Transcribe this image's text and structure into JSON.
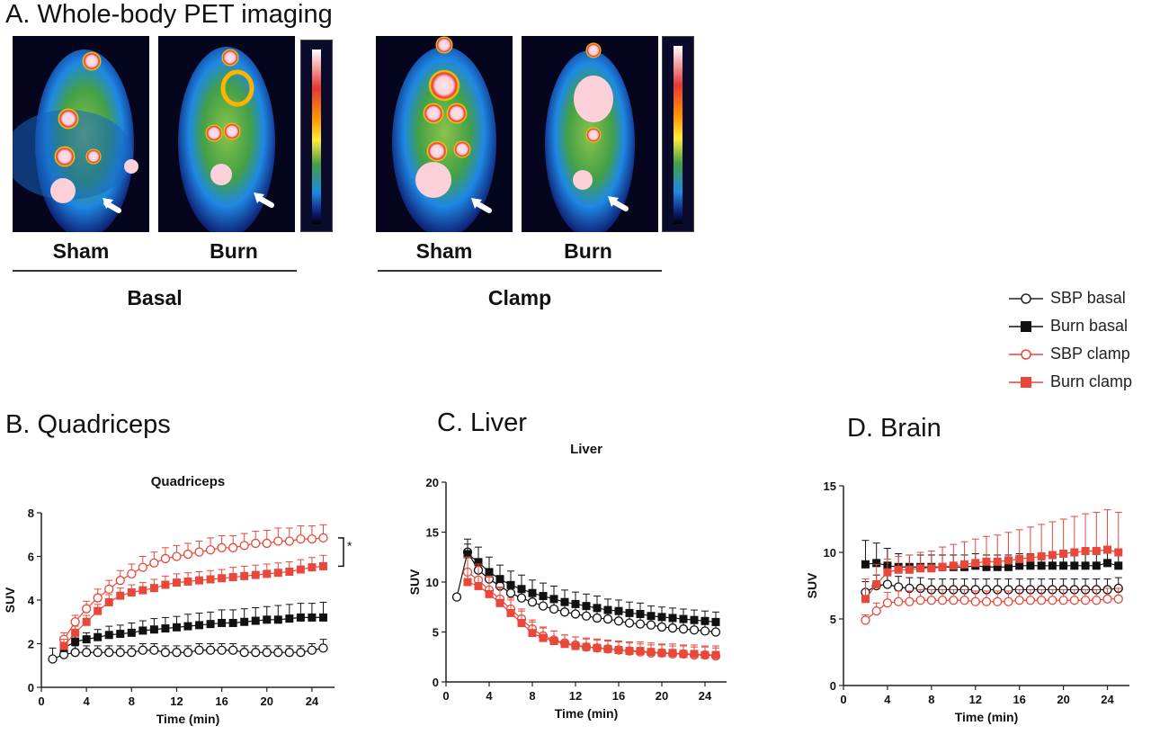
{
  "panelA": {
    "title": "A. Whole-body PET imaging",
    "labels": [
      "Sham",
      "Burn",
      "Sham",
      "Burn"
    ],
    "groups": [
      "Basal",
      "Clamp"
    ]
  },
  "panel_titles": {
    "quad": "B. Quadriceps",
    "liver": "C. Liver",
    "brain": "D. Brain"
  },
  "legend": [
    {
      "label": "SBP basal",
      "color": "#222222",
      "marker": "open-circle"
    },
    {
      "label": "Burn basal",
      "color": "#111111",
      "marker": "filled-square"
    },
    {
      "label": "SBP clamp",
      "color": "#e8473a",
      "marker": "open-circle"
    },
    {
      "label": "Burn clamp",
      "color": "#e8473a",
      "marker": "filled-square"
    }
  ],
  "colors": {
    "black": "#111111",
    "red": "#e8473a",
    "axis": "#222222"
  },
  "chart_data": [
    {
      "type": "line",
      "title": "Quadriceps",
      "xlabel": "Time (min)",
      "ylabel": "SUV",
      "xlim": [
        0,
        26
      ],
      "ylim": [
        0,
        8
      ],
      "xticks": [
        0,
        4,
        8,
        12,
        16,
        20,
        24
      ],
      "yticks": [
        0,
        2,
        4,
        6,
        8
      ],
      "annotation": "*",
      "series": [
        {
          "name": "SBP basal",
          "x": [
            1,
            2,
            3,
            4,
            5,
            6,
            7,
            8,
            9,
            10,
            11,
            12,
            13,
            14,
            15,
            16,
            17,
            18,
            19,
            20,
            21,
            22,
            23,
            24,
            25
          ],
          "y": [
            1.3,
            1.5,
            1.6,
            1.6,
            1.6,
            1.6,
            1.6,
            1.6,
            1.7,
            1.7,
            1.6,
            1.6,
            1.6,
            1.7,
            1.7,
            1.7,
            1.7,
            1.6,
            1.6,
            1.6,
            1.6,
            1.6,
            1.6,
            1.7,
            1.8
          ],
          "err": [
            0.5,
            0.4,
            0.3,
            0.3,
            0.3,
            0.3,
            0.3,
            0.3,
            0.3,
            0.3,
            0.3,
            0.3,
            0.3,
            0.3,
            0.3,
            0.3,
            0.3,
            0.3,
            0.3,
            0.3,
            0.3,
            0.3,
            0.3,
            0.3,
            0.4
          ]
        },
        {
          "name": "Burn basal",
          "x": [
            2,
            3,
            4,
            5,
            6,
            7,
            8,
            9,
            10,
            11,
            12,
            13,
            14,
            15,
            16,
            17,
            18,
            19,
            20,
            21,
            22,
            23,
            24,
            25
          ],
          "y": [
            1.8,
            2.1,
            2.2,
            2.3,
            2.4,
            2.45,
            2.5,
            2.6,
            2.65,
            2.7,
            2.75,
            2.8,
            2.85,
            2.9,
            2.95,
            2.95,
            3.0,
            3.05,
            3.1,
            3.1,
            3.15,
            3.2,
            3.2,
            3.2
          ],
          "err": [
            0.3,
            0.3,
            0.3,
            0.35,
            0.4,
            0.4,
            0.45,
            0.45,
            0.5,
            0.5,
            0.5,
            0.55,
            0.55,
            0.55,
            0.6,
            0.6,
            0.6,
            0.6,
            0.6,
            0.65,
            0.65,
            0.65,
            0.65,
            0.7
          ]
        },
        {
          "name": "SBP clamp",
          "x": [
            2,
            3,
            4,
            5,
            6,
            7,
            8,
            9,
            10,
            11,
            12,
            13,
            14,
            15,
            16,
            17,
            18,
            19,
            20,
            21,
            22,
            23,
            24,
            25
          ],
          "y": [
            2.2,
            3.0,
            3.6,
            4.1,
            4.5,
            4.9,
            5.2,
            5.5,
            5.7,
            5.9,
            6.0,
            6.1,
            6.2,
            6.3,
            6.4,
            6.4,
            6.5,
            6.6,
            6.6,
            6.7,
            6.7,
            6.8,
            6.8,
            6.85
          ],
          "err": [
            0.3,
            0.3,
            0.35,
            0.4,
            0.4,
            0.45,
            0.45,
            0.5,
            0.5,
            0.5,
            0.5,
            0.5,
            0.5,
            0.55,
            0.55,
            0.55,
            0.55,
            0.55,
            0.6,
            0.6,
            0.6,
            0.6,
            0.6,
            0.6
          ]
        },
        {
          "name": "Burn clamp",
          "x": [
            2,
            3,
            4,
            5,
            6,
            7,
            8,
            9,
            10,
            11,
            12,
            13,
            14,
            15,
            16,
            17,
            18,
            19,
            20,
            21,
            22,
            23,
            24,
            25
          ],
          "y": [
            1.9,
            2.5,
            3.0,
            3.5,
            3.9,
            4.2,
            4.35,
            4.45,
            4.55,
            4.7,
            4.8,
            4.85,
            4.9,
            4.95,
            5.0,
            5.05,
            5.1,
            5.15,
            5.2,
            5.25,
            5.3,
            5.4,
            5.5,
            5.55
          ],
          "err": [
            0.3,
            0.3,
            0.3,
            0.3,
            0.35,
            0.35,
            0.35,
            0.35,
            0.4,
            0.4,
            0.4,
            0.4,
            0.4,
            0.4,
            0.4,
            0.45,
            0.45,
            0.45,
            0.45,
            0.45,
            0.45,
            0.45,
            0.45,
            0.5
          ]
        }
      ]
    },
    {
      "type": "line",
      "title": "Liver",
      "xlabel": "Time (min)",
      "ylabel": "SUV",
      "xlim": [
        0,
        26
      ],
      "ylim": [
        0,
        20
      ],
      "xticks": [
        0,
        4,
        8,
        12,
        16,
        20,
        24
      ],
      "yticks": [
        0,
        5,
        10,
        15,
        20
      ],
      "series": [
        {
          "name": "SBP basal",
          "x": [
            1,
            2,
            3,
            4,
            5,
            6,
            7,
            8,
            9,
            10,
            11,
            12,
            13,
            14,
            15,
            16,
            17,
            18,
            19,
            20,
            21,
            22,
            23,
            24,
            25
          ],
          "y": [
            8.5,
            13.0,
            11.2,
            10.3,
            9.6,
            8.9,
            8.4,
            8.0,
            7.6,
            7.3,
            7.0,
            6.8,
            6.6,
            6.4,
            6.3,
            6.1,
            5.9,
            5.8,
            5.7,
            5.5,
            5.4,
            5.3,
            5.2,
            5.1,
            5.0
          ],
          "err": [
            0.3,
            0.8,
            0.8,
            0.8,
            0.8,
            0.8,
            0.8,
            0.8,
            0.8,
            0.8,
            0.8,
            0.8,
            0.8,
            0.8,
            0.8,
            0.8,
            0.8,
            0.8,
            0.8,
            0.8,
            0.8,
            0.8,
            0.8,
            0.8,
            0.8
          ]
        },
        {
          "name": "Burn basal",
          "x": [
            2,
            3,
            4,
            5,
            6,
            7,
            8,
            9,
            10,
            11,
            12,
            13,
            14,
            15,
            16,
            17,
            18,
            19,
            20,
            21,
            22,
            23,
            24,
            25
          ],
          "y": [
            12.8,
            12.0,
            11.0,
            10.3,
            9.7,
            9.3,
            8.9,
            8.6,
            8.3,
            8.0,
            7.8,
            7.6,
            7.4,
            7.2,
            7.1,
            6.9,
            6.8,
            6.6,
            6.5,
            6.4,
            6.3,
            6.2,
            6.1,
            6.0
          ],
          "err": [
            1.5,
            1.5,
            1.5,
            1.4,
            1.4,
            1.4,
            1.3,
            1.3,
            1.3,
            1.2,
            1.2,
            1.2,
            1.2,
            1.1,
            1.1,
            1.1,
            1.1,
            1.0,
            1.0,
            1.0,
            1.0,
            1.0,
            1.0,
            1.0
          ]
        },
        {
          "name": "SBP clamp",
          "x": [
            2,
            3,
            4,
            5,
            6,
            7,
            8,
            9,
            10,
            11,
            12,
            13,
            14,
            15,
            16,
            17,
            18,
            19,
            20,
            21,
            22,
            23,
            24,
            25
          ],
          "y": [
            11.0,
            10.2,
            9.2,
            8.3,
            7.3,
            6.3,
            5.3,
            4.6,
            4.2,
            3.9,
            3.7,
            3.5,
            3.4,
            3.3,
            3.2,
            3.1,
            3.0,
            2.9,
            2.9,
            2.8,
            2.8,
            2.7,
            2.7,
            2.6
          ],
          "err": [
            1.5,
            1.4,
            1.3,
            1.2,
            1.1,
            1.0,
            0.9,
            0.9,
            0.9,
            0.8,
            0.8,
            0.8,
            0.8,
            0.8,
            0.8,
            0.8,
            0.8,
            0.8,
            0.8,
            0.8,
            0.8,
            0.8,
            0.8,
            0.8
          ]
        },
        {
          "name": "Burn clamp",
          "x": [
            2,
            3,
            4,
            5,
            6,
            7,
            8,
            9,
            10,
            11,
            12,
            13,
            14,
            15,
            16,
            17,
            18,
            19,
            20,
            21,
            22,
            23,
            24,
            25
          ],
          "y": [
            10.0,
            9.6,
            8.8,
            7.9,
            6.9,
            5.9,
            4.9,
            4.4,
            4.1,
            3.8,
            3.6,
            3.5,
            3.4,
            3.3,
            3.2,
            3.1,
            3.1,
            3.0,
            2.9,
            2.9,
            2.8,
            2.8,
            2.7,
            2.7
          ],
          "err": [
            2.5,
            2.2,
            1.8,
            1.5,
            1.3,
            1.2,
            1.1,
            1.0,
            1.0,
            0.9,
            0.9,
            0.9,
            0.9,
            0.9,
            0.9,
            0.9,
            0.9,
            0.9,
            0.9,
            0.9,
            0.9,
            0.9,
            0.9,
            0.9
          ]
        }
      ]
    },
    {
      "type": "line",
      "title": "",
      "xlabel": "Time (min)",
      "ylabel": "SUV",
      "xlim": [
        0,
        26
      ],
      "ylim": [
        0,
        15
      ],
      "xticks": [
        0,
        4,
        8,
        12,
        16,
        20,
        24
      ],
      "yticks": [
        0,
        5,
        10,
        15
      ],
      "series": [
        {
          "name": "SBP basal",
          "x": [
            2,
            3,
            4,
            5,
            6,
            7,
            8,
            9,
            10,
            11,
            12,
            13,
            14,
            15,
            16,
            17,
            18,
            19,
            20,
            21,
            22,
            23,
            24,
            25
          ],
          "y": [
            7.0,
            7.5,
            7.6,
            7.4,
            7.3,
            7.3,
            7.2,
            7.2,
            7.2,
            7.2,
            7.2,
            7.2,
            7.2,
            7.2,
            7.2,
            7.2,
            7.2,
            7.2,
            7.2,
            7.2,
            7.2,
            7.2,
            7.2,
            7.3
          ],
          "err": [
            0.8,
            0.8,
            0.8,
            0.8,
            0.8,
            0.8,
            0.8,
            0.8,
            0.8,
            0.8,
            0.8,
            0.8,
            0.8,
            0.8,
            0.8,
            0.8,
            0.8,
            0.8,
            0.8,
            0.8,
            0.8,
            0.8,
            0.8,
            0.8
          ]
        },
        {
          "name": "Burn basal",
          "x": [
            2,
            3,
            4,
            5,
            6,
            7,
            8,
            9,
            10,
            11,
            12,
            13,
            14,
            15,
            16,
            17,
            18,
            19,
            20,
            21,
            22,
            23,
            24,
            25
          ],
          "y": [
            9.1,
            9.2,
            9.0,
            8.9,
            8.9,
            8.9,
            8.9,
            8.9,
            8.9,
            8.9,
            9.0,
            8.9,
            8.9,
            8.9,
            9.0,
            9.0,
            9.0,
            9.0,
            9.0,
            9.0,
            9.0,
            9.0,
            9.2,
            9.0
          ],
          "err": [
            1.8,
            1.5,
            1.3,
            1.0,
            0.9,
            0.9,
            0.9,
            0.9,
            0.9,
            0.9,
            0.9,
            0.9,
            0.9,
            0.9,
            0.9,
            0.9,
            0.9,
            0.9,
            0.9,
            0.9,
            0.9,
            0.9,
            0.9,
            0.9
          ]
        },
        {
          "name": "SBP clamp",
          "x": [
            2,
            3,
            4,
            5,
            6,
            7,
            8,
            9,
            10,
            11,
            12,
            13,
            14,
            15,
            16,
            17,
            18,
            19,
            20,
            21,
            22,
            23,
            24,
            25
          ],
          "y": [
            4.9,
            5.6,
            6.2,
            6.3,
            6.3,
            6.4,
            6.4,
            6.4,
            6.4,
            6.4,
            6.3,
            6.3,
            6.3,
            6.3,
            6.4,
            6.4,
            6.4,
            6.4,
            6.4,
            6.4,
            6.4,
            6.4,
            6.5,
            6.5
          ],
          "err": [
            0.4,
            0.6,
            0.8,
            0.8,
            0.8,
            0.8,
            0.8,
            0.8,
            0.8,
            0.8,
            0.8,
            0.8,
            0.8,
            0.8,
            0.8,
            0.8,
            0.8,
            0.8,
            0.8,
            0.8,
            0.8,
            0.8,
            0.8,
            0.8
          ]
        },
        {
          "name": "Burn clamp",
          "x": [
            2,
            3,
            4,
            5,
            6,
            7,
            8,
            9,
            10,
            11,
            12,
            13,
            14,
            15,
            16,
            17,
            18,
            19,
            20,
            21,
            22,
            23,
            24,
            25
          ],
          "y": [
            6.5,
            7.6,
            8.5,
            8.7,
            8.7,
            8.8,
            8.8,
            8.9,
            9.0,
            9.1,
            9.2,
            9.3,
            9.3,
            9.4,
            9.5,
            9.6,
            9.7,
            9.8,
            9.9,
            10.0,
            10.1,
            10.1,
            10.2,
            10.0
          ],
          "err": [
            1.5,
            1.5,
            1.0,
            1.0,
            1.1,
            1.2,
            1.3,
            1.5,
            1.6,
            1.7,
            1.8,
            1.9,
            2.0,
            2.1,
            2.2,
            2.3,
            2.4,
            2.5,
            2.6,
            2.7,
            2.8,
            2.9,
            3.0,
            3.0
          ]
        }
      ]
    }
  ]
}
